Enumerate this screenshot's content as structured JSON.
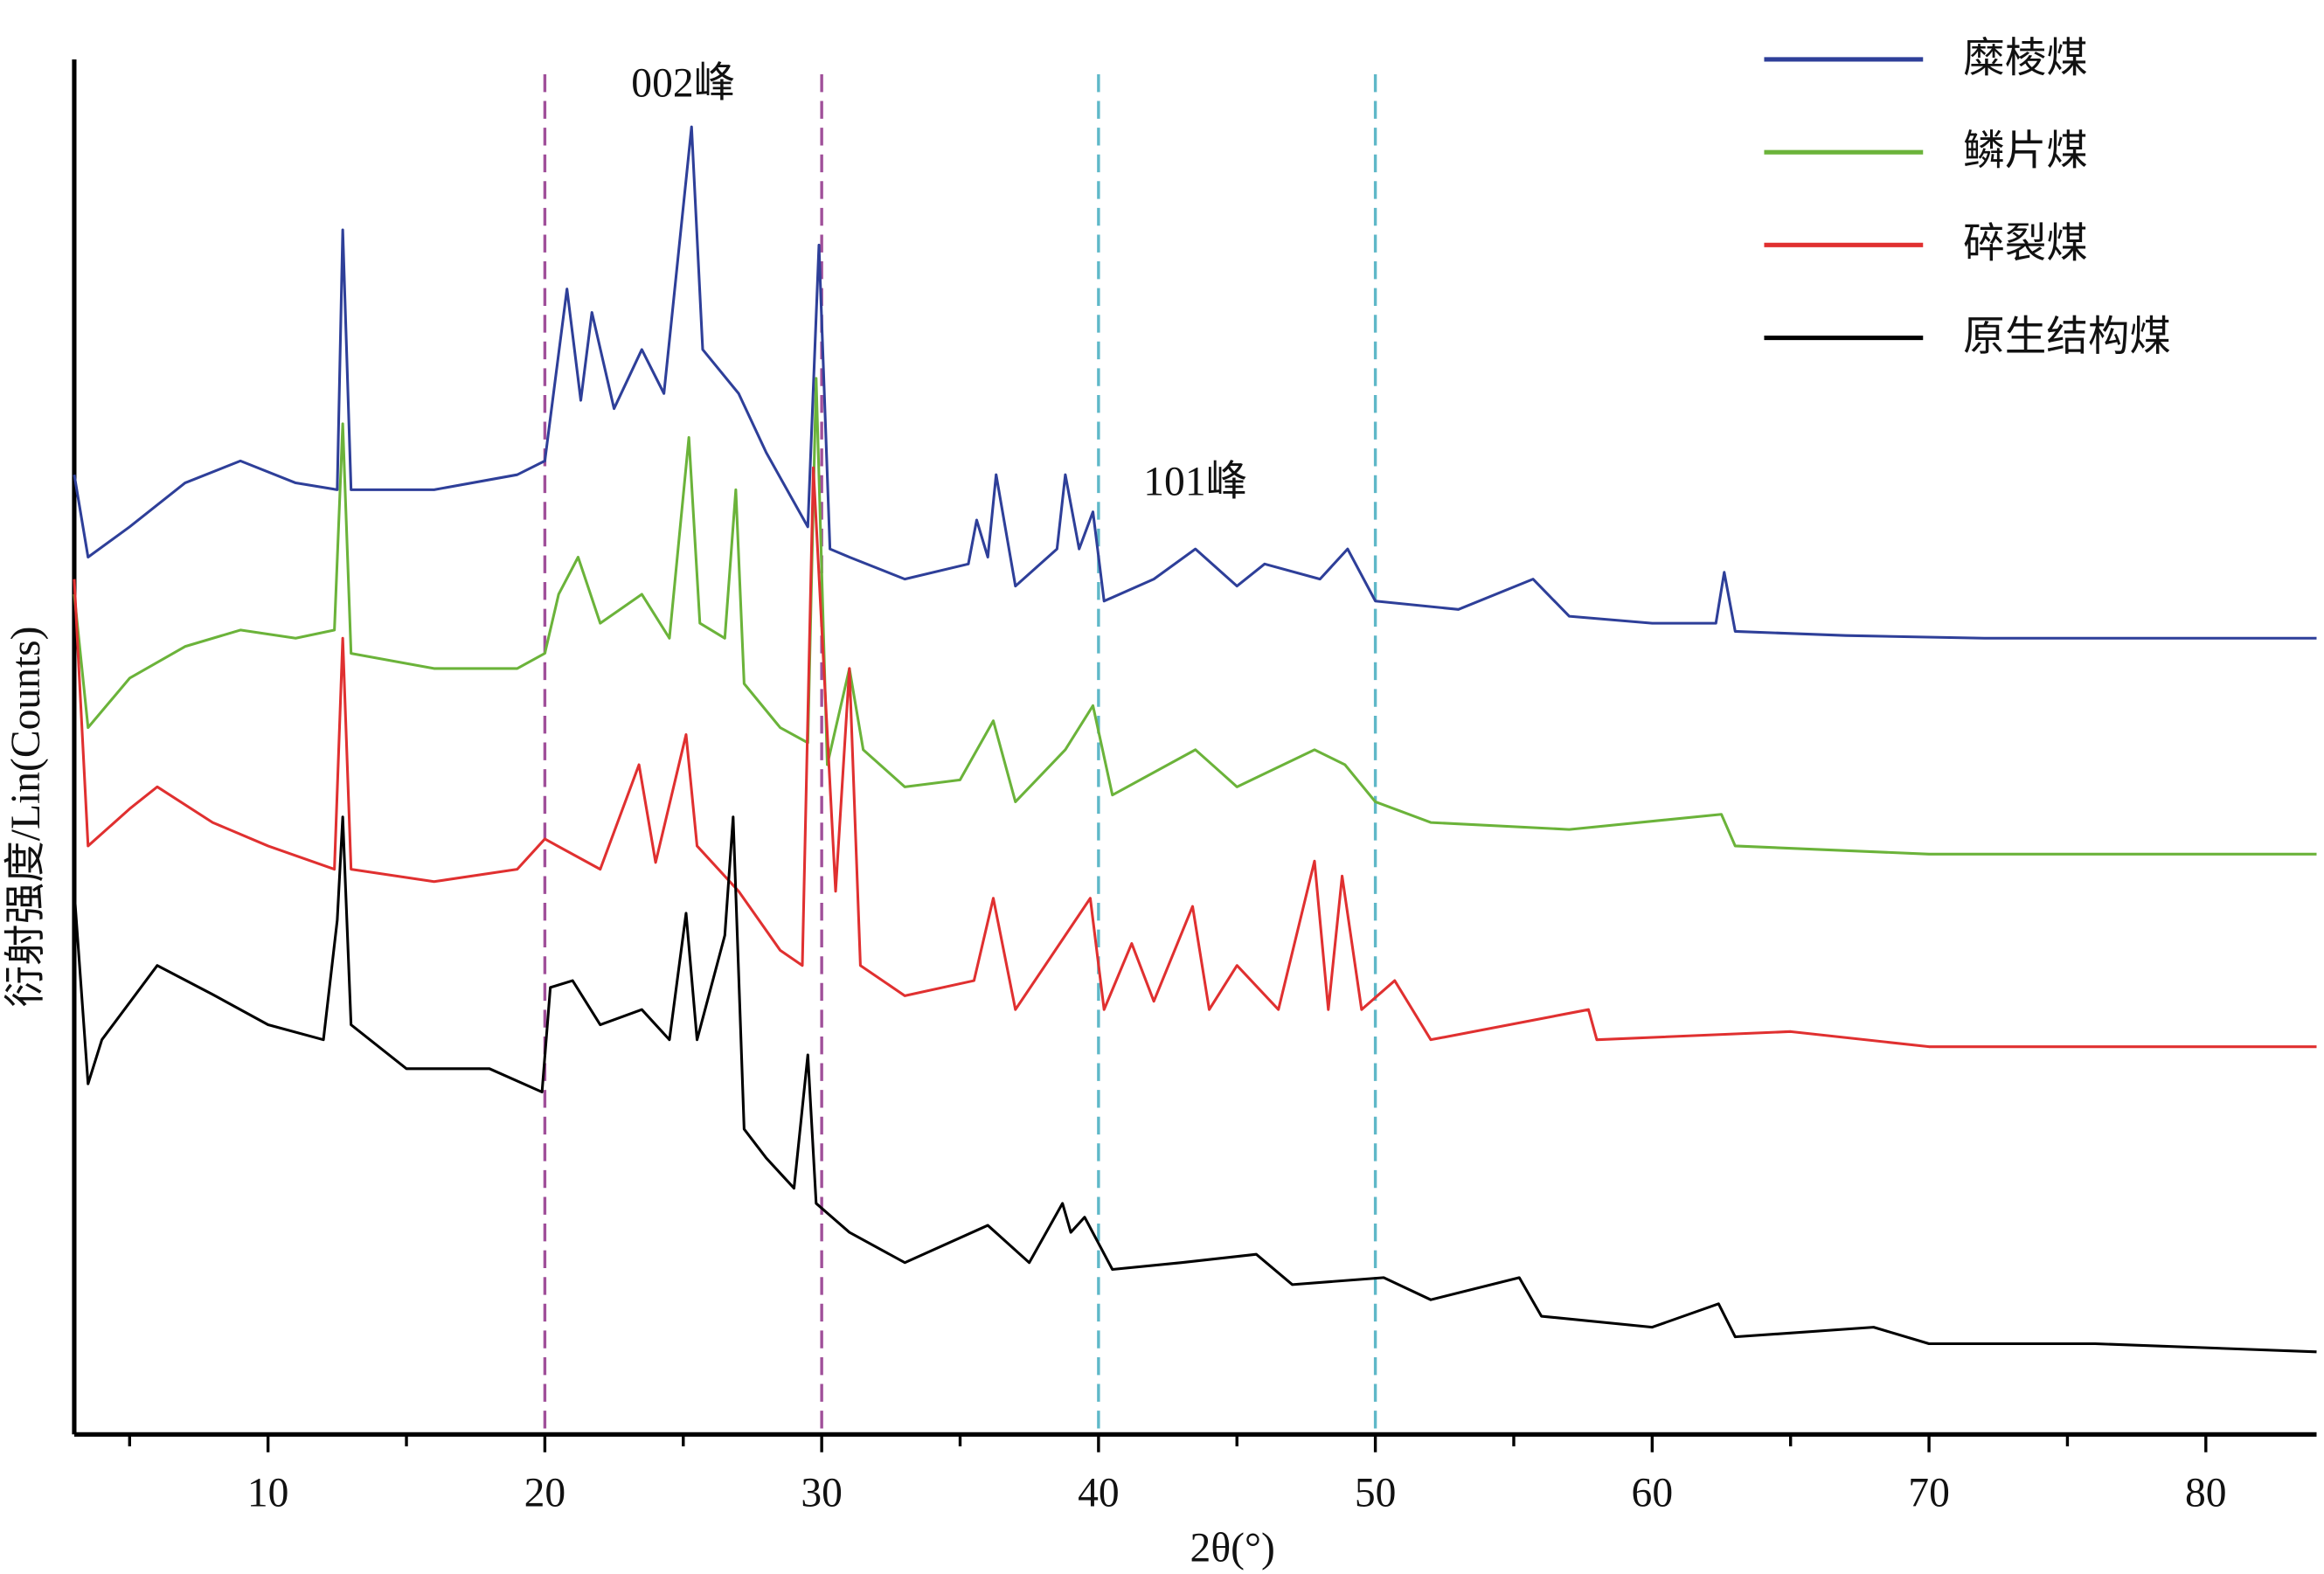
{
  "chart_data": {
    "type": "line",
    "xlabel": "2θ(°)",
    "ylabel": "衍射强度/Lin(Counts)",
    "xlim": [
      3,
      84
    ],
    "ylim": [
      0,
      100
    ],
    "xticks": [
      10,
      20,
      30,
      40,
      50,
      60,
      70,
      80
    ],
    "xminor_ticks": [
      5,
      15,
      25,
      35,
      45,
      55,
      65,
      75
    ],
    "legend": "upper right",
    "vlines": [
      {
        "x": 20,
        "color": "#a0509a"
      },
      {
        "x": 30,
        "color": "#a0509a"
      },
      {
        "x": 40,
        "color": "#5fb8c8"
      },
      {
        "x": 50,
        "color": "#5fb8c8"
      }
    ],
    "annotations": [
      {
        "text": "002峰",
        "x": 25,
        "y": 98
      },
      {
        "text": "101峰",
        "x": 43.5,
        "y": 69
      }
    ],
    "series": [
      {
        "name": "糜棱煤",
        "color": "#2e3f99",
        "x": [
          3,
          3.5,
          5,
          7,
          9,
          11,
          12.5,
          12.7,
          13,
          16,
          19,
          20,
          20.8,
          21.3,
          21.7,
          22.5,
          23.5,
          24.3,
          25.3,
          25.7,
          27,
          28,
          29.5,
          29.9,
          30.3,
          31,
          33,
          35.3,
          35.6,
          36,
          36.3,
          37,
          38.5,
          38.8,
          39.3,
          39.8,
          40.2,
          42,
          43.5,
          45,
          46,
          48,
          49,
          50,
          53,
          55.7,
          57,
          60,
          62.3,
          62.6,
          63,
          67,
          72,
          78,
          84
        ],
        "values": [
          69.8,
          63.8,
          66.0,
          69.2,
          70.8,
          69.2,
          68.7,
          87.6,
          68.7,
          68.7,
          69.8,
          70.8,
          83.3,
          75.2,
          81.6,
          74.6,
          78.9,
          75.7,
          95.1,
          78.9,
          75.7,
          71.4,
          66.0,
          86.5,
          64.4,
          63.8,
          62.2,
          63.3,
          66.5,
          63.8,
          69.8,
          61.7,
          64.4,
          69.8,
          64.4,
          67.1,
          60.6,
          62.2,
          64.4,
          61.7,
          63.3,
          62.2,
          64.4,
          60.6,
          60.0,
          62.2,
          59.5,
          59.0,
          59.0,
          62.7,
          58.4,
          58.1,
          57.9,
          57.9,
          57.9
        ]
      },
      {
        "name": "鳞片煤",
        "color": "#6bb33a",
        "x": [
          3,
          3.5,
          5,
          7,
          9,
          11,
          12.4,
          12.7,
          13,
          16,
          19,
          20,
          20.5,
          21.2,
          22,
          23.5,
          24.5,
          25.2,
          25.6,
          26.5,
          26.9,
          27.2,
          28.5,
          29.5,
          29.8,
          30.2,
          31,
          31.5,
          33,
          35,
          36.2,
          37,
          38.8,
          39.8,
          40.5,
          43.5,
          45,
          47.8,
          48.9,
          50,
          52,
          57,
          62.5,
          63,
          70,
          77,
          84
        ],
        "values": [
          61.1,
          51.4,
          55.0,
          57.3,
          58.5,
          57.9,
          58.5,
          73.5,
          56.8,
          55.7,
          55.7,
          56.8,
          61.1,
          63.8,
          59.0,
          61.1,
          57.9,
          72.5,
          59.0,
          57.9,
          68.7,
          54.6,
          51.4,
          50.3,
          76.8,
          48.7,
          55.7,
          49.8,
          47.1,
          47.6,
          51.9,
          46.0,
          49.8,
          53.0,
          46.5,
          49.8,
          47.1,
          49.8,
          48.7,
          46.0,
          44.5,
          44.0,
          45.1,
          42.8,
          42.2,
          42.2,
          42.2
        ]
      },
      {
        "name": "碎裂煤",
        "color": "#e03030",
        "x": [
          3,
          3.5,
          5,
          6,
          8,
          10,
          12.4,
          12.7,
          13,
          16,
          19,
          20,
          22,
          23.4,
          24,
          25.1,
          25.5,
          27,
          28.5,
          29.3,
          29.7,
          30.5,
          31,
          31.4,
          33,
          35.5,
          36.2,
          37,
          39.7,
          40.2,
          41.2,
          42,
          43.4,
          44,
          45,
          46.5,
          47.8,
          48.3,
          48.8,
          49.5,
          50.7,
          52,
          57.7,
          58,
          65,
          70,
          77,
          84
        ],
        "values": [
          62.2,
          42.8,
          45.5,
          47.1,
          44.5,
          42.8,
          41.1,
          57.9,
          41.1,
          40.2,
          41.1,
          43.3,
          41.1,
          48.7,
          41.6,
          50.9,
          42.8,
          39.5,
          35.2,
          34.1,
          70.3,
          39.5,
          55.7,
          34.1,
          31.9,
          33.0,
          39.0,
          30.9,
          39.0,
          30.9,
          35.7,
          31.5,
          38.4,
          30.9,
          34.1,
          30.9,
          41.7,
          30.9,
          40.6,
          30.9,
          33.0,
          28.7,
          30.9,
          28.7,
          29.3,
          28.2,
          28.2,
          28.2
        ]
      },
      {
        "name": "原生结构煤",
        "color": "#000000",
        "x": [
          3,
          3.5,
          4,
          6,
          8,
          10,
          12,
          12.5,
          12.7,
          13,
          15,
          18,
          19.9,
          20.2,
          21,
          22,
          23.5,
          24.5,
          25.1,
          25.5,
          26.5,
          26.8,
          27.2,
          28,
          29,
          29.5,
          29.8,
          31,
          33,
          36,
          37.5,
          38.7,
          39,
          39.5,
          40.5,
          43,
          45.7,
          47,
          50.3,
          52,
          55.2,
          56,
          60,
          62.4,
          63,
          68,
          70,
          76,
          84
        ],
        "values": [
          39.5,
          25.5,
          28.7,
          34.1,
          32.0,
          29.8,
          28.7,
          37.4,
          44.9,
          29.8,
          26.6,
          26.6,
          24.9,
          32.5,
          33.0,
          29.8,
          30.9,
          28.7,
          37.9,
          28.7,
          36.3,
          44.9,
          22.2,
          20.1,
          17.9,
          27.6,
          16.8,
          14.7,
          12.5,
          15.2,
          12.5,
          16.8,
          14.7,
          15.8,
          12.0,
          12.5,
          13.1,
          10.9,
          11.4,
          9.8,
          11.4,
          8.6,
          7.8,
          9.5,
          7.1,
          7.8,
          6.6,
          6.6,
          6.0
        ]
      }
    ]
  }
}
